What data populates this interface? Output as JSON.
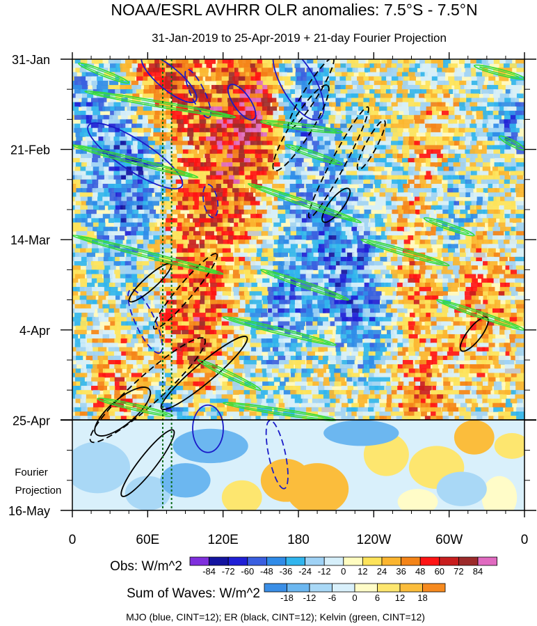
{
  "chart_data": {
    "type": "heatmap",
    "title": "NOAA/ESRL AVHRR OLR anomalies: 7.5°S - 7.5°N",
    "subtitle": "31-Jan-2019 to 25-Apr-2019 + 21-day Fourier Projection",
    "x_ticks": [
      "0",
      "60E",
      "120E",
      "180",
      "120W",
      "60W",
      "0"
    ],
    "x_tick_lon": [
      0,
      60,
      120,
      180,
      240,
      300,
      360
    ],
    "y_ticks": [
      "31-Jan",
      "21-Feb",
      "14-Mar",
      "4-Apr",
      "25-Apr",
      "16-May"
    ],
    "y_tick_day": [
      0,
      21,
      42,
      63,
      84,
      105
    ],
    "projection_label": [
      "Fourier",
      "Projection"
    ],
    "projection_start_day": 84,
    "reference_lines_lon": [
      72,
      79
    ],
    "obs_colorbar": {
      "label": "Obs: W/m^2",
      "levels": [
        "-84",
        "-72",
        "-60",
        "-48",
        "-36",
        "-24",
        "-12",
        "0",
        "12",
        "24",
        "36",
        "48",
        "60",
        "72",
        "84"
      ],
      "colors": [
        "#7f2fdd",
        "#1414a0",
        "#1f1fd6",
        "#3a5fe0",
        "#2f8be8",
        "#31b5ee",
        "#9fd2f5",
        "#d6effa",
        "#fffcc0",
        "#fde35a",
        "#fbb52f",
        "#f48418",
        "#ff1414",
        "#c81e1e",
        "#9c2a2a",
        "#e06ac0"
      ]
    },
    "waves_colorbar": {
      "label": "Sum of Waves: W/m^2",
      "levels": [
        "-18",
        "-12",
        "-6",
        "0",
        "6",
        "12",
        "18"
      ],
      "colors": [
        "#3a8ee6",
        "#6cb7f0",
        "#a9d8f6",
        "#d9f0fb",
        "#fffcc8",
        "#fde66f",
        "#fbbd3c",
        "#f68a1f"
      ]
    },
    "wave_contours": [
      {
        "name": "MJO",
        "color": "#1a1ac8",
        "cint": 12,
        "segments": [
          {
            "lon": 50,
            "day": 22.5,
            "a": 80,
            "b": 22,
            "rot": 33,
            "dash": false
          },
          {
            "lon": 77,
            "day": 4.5,
            "a": 50,
            "b": 16,
            "rot": 40,
            "dash": false
          },
          {
            "lon": 100,
            "day": 8.0,
            "a": 38,
            "b": 10,
            "rot": 65,
            "dash": true
          },
          {
            "lon": 110,
            "day": 33.0,
            "a": 24,
            "b": 10,
            "rot": 80,
            "dash": true
          },
          {
            "lon": 135,
            "day": 10.0,
            "a": 30,
            "b": 12,
            "rot": 55,
            "dash": false
          },
          {
            "lon": 180,
            "day": 5.5,
            "a": 60,
            "b": 24,
            "rot": 60,
            "dash": false
          },
          {
            "lon": 108,
            "day": 86.0,
            "a": 22,
            "b": 34,
            "rot": 0,
            "dash": false
          },
          {
            "lon": 163,
            "day": 92.0,
            "a": 50,
            "b": 12,
            "rot": 78,
            "dash": true
          },
          {
            "lon": 58,
            "day": 61.0,
            "a": 50,
            "b": 14,
            "rot": 65,
            "dash": true
          }
        ]
      },
      {
        "name": "ER",
        "color": "#000000",
        "cint": 12,
        "segments": [
          {
            "lon": 60,
            "day": 77.0,
            "a": 110,
            "b": 20,
            "rot": -42,
            "dash": true
          },
          {
            "lon": 105,
            "day": 73.0,
            "a": 80,
            "b": 14,
            "rot": -40,
            "dash": false
          },
          {
            "lon": 62,
            "day": 52.0,
            "a": 40,
            "b": 9,
            "rot": -42,
            "dash": false
          },
          {
            "lon": 90,
            "day": 54.0,
            "a": 70,
            "b": 11,
            "rot": -50,
            "dash": true
          },
          {
            "lon": 182,
            "day": 16.0,
            "a": 72,
            "b": 15,
            "rot": -58,
            "dash": true
          },
          {
            "lon": 210,
            "day": 34.0,
            "a": 30,
            "b": 10,
            "rot": -52,
            "dash": false
          },
          {
            "lon": 212,
            "day": 24.0,
            "a": 90,
            "b": 10,
            "rot": -62,
            "dash": true
          },
          {
            "lon": 238,
            "day": 20.0,
            "a": 40,
            "b": 8,
            "rot": -62,
            "dash": true
          },
          {
            "lon": 190,
            "day": 8.0,
            "a": 60,
            "b": 10,
            "rot": -58,
            "dash": true
          },
          {
            "lon": 320,
            "day": 64.0,
            "a": 30,
            "b": 10,
            "rot": -52,
            "dash": false
          },
          {
            "lon": 40,
            "day": 82.0,
            "a": 50,
            "b": 18,
            "rot": -40,
            "dash": false
          },
          {
            "lon": 60,
            "day": 94.0,
            "a": 60,
            "b": 12,
            "rot": -52,
            "dash": false
          }
        ]
      },
      {
        "name": "Kelvin",
        "color": "#33dd33",
        "cint": 12,
        "segments": [
          {
            "lon": 5,
            "day": 1.0,
            "lon2": 45,
            "day2": 5.5
          },
          {
            "lon": 10,
            "day": 7.5,
            "lon2": 130,
            "day2": 13.5
          },
          {
            "lon": 150,
            "day": 14.5,
            "lon2": 215,
            "day2": 17.0
          },
          {
            "lon": 0,
            "day": 20.0,
            "lon2": 100,
            "day2": 27.5
          },
          {
            "lon": 170,
            "day": 20.0,
            "lon2": 215,
            "day2": 24.5
          },
          {
            "lon": 140,
            "day": 29.0,
            "lon2": 230,
            "day2": 38.0
          },
          {
            "lon": 0,
            "day": 41.0,
            "lon2": 120,
            "day2": 50.0
          },
          {
            "lon": 150,
            "day": 49.0,
            "lon2": 220,
            "day2": 56.0
          },
          {
            "lon": 230,
            "day": 42.0,
            "lon2": 300,
            "day2": 48.0
          },
          {
            "lon": 280,
            "day": 37.0,
            "lon2": 320,
            "day2": 41.0
          },
          {
            "lon": 290,
            "day": 56.0,
            "lon2": 360,
            "day2": 63.0
          },
          {
            "lon": 120,
            "day": 60.0,
            "lon2": 210,
            "day2": 66.5
          },
          {
            "lon": 100,
            "day": 70.0,
            "lon2": 150,
            "day2": 77.0
          },
          {
            "lon": 20,
            "day": 79.0,
            "lon2": 80,
            "day2": 83.0
          },
          {
            "lon": 120,
            "day": 80.0,
            "lon2": 210,
            "day2": 84.0
          },
          {
            "lon": 320,
            "day": 1.5,
            "lon2": 360,
            "day2": 4.5
          },
          {
            "lon": 340,
            "day": 18.0,
            "lon2": 360,
            "day2": 21.0
          }
        ]
      }
    ],
    "legend_caption": "MJO (blue, CINT=12); ER (black, CINT=12); Kelvin (green, CINT=12)"
  }
}
